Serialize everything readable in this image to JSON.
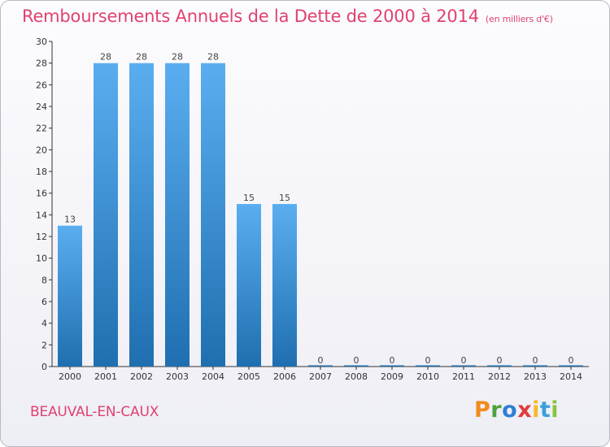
{
  "header": {
    "title": "Remboursements Annuels de la Dette de 2000 à 2014",
    "unit": "(en milliers d'€)"
  },
  "footer": {
    "commune": "BEAUVAL-EN-CAUX",
    "logo_letters": [
      "P",
      "r",
      "o",
      "x",
      "i",
      "t",
      "i"
    ],
    "logo_colors": [
      "#f08b1e",
      "#4aa43a",
      "#2f7fd3",
      "#e23a3a",
      "#f5b92a",
      "#3aa0d8",
      "#8ac23c"
    ]
  },
  "colors": {
    "bar_top": "#5aaef0",
    "bar_bottom": "#1f6fb0",
    "axis": "#333333",
    "grid": "#c8c8d0"
  },
  "chart_data": {
    "type": "bar",
    "title": "Remboursements Annuels de la Dette de 2000 à 2014",
    "xlabel": "",
    "ylabel": "",
    "categories": [
      "2000",
      "2001",
      "2002",
      "2003",
      "2004",
      "2005",
      "2006",
      "2007",
      "2008",
      "2009",
      "2010",
      "2011",
      "2012",
      "2013",
      "2014"
    ],
    "values": [
      13,
      28,
      28,
      28,
      28,
      15,
      15,
      0,
      0,
      0,
      0,
      0,
      0,
      0,
      0
    ],
    "ylim": [
      0,
      30
    ],
    "yticks": [
      0,
      2,
      4,
      6,
      8,
      10,
      12,
      14,
      16,
      18,
      20,
      22,
      24,
      26,
      28,
      30
    ],
    "grid": false,
    "legend": "none"
  }
}
